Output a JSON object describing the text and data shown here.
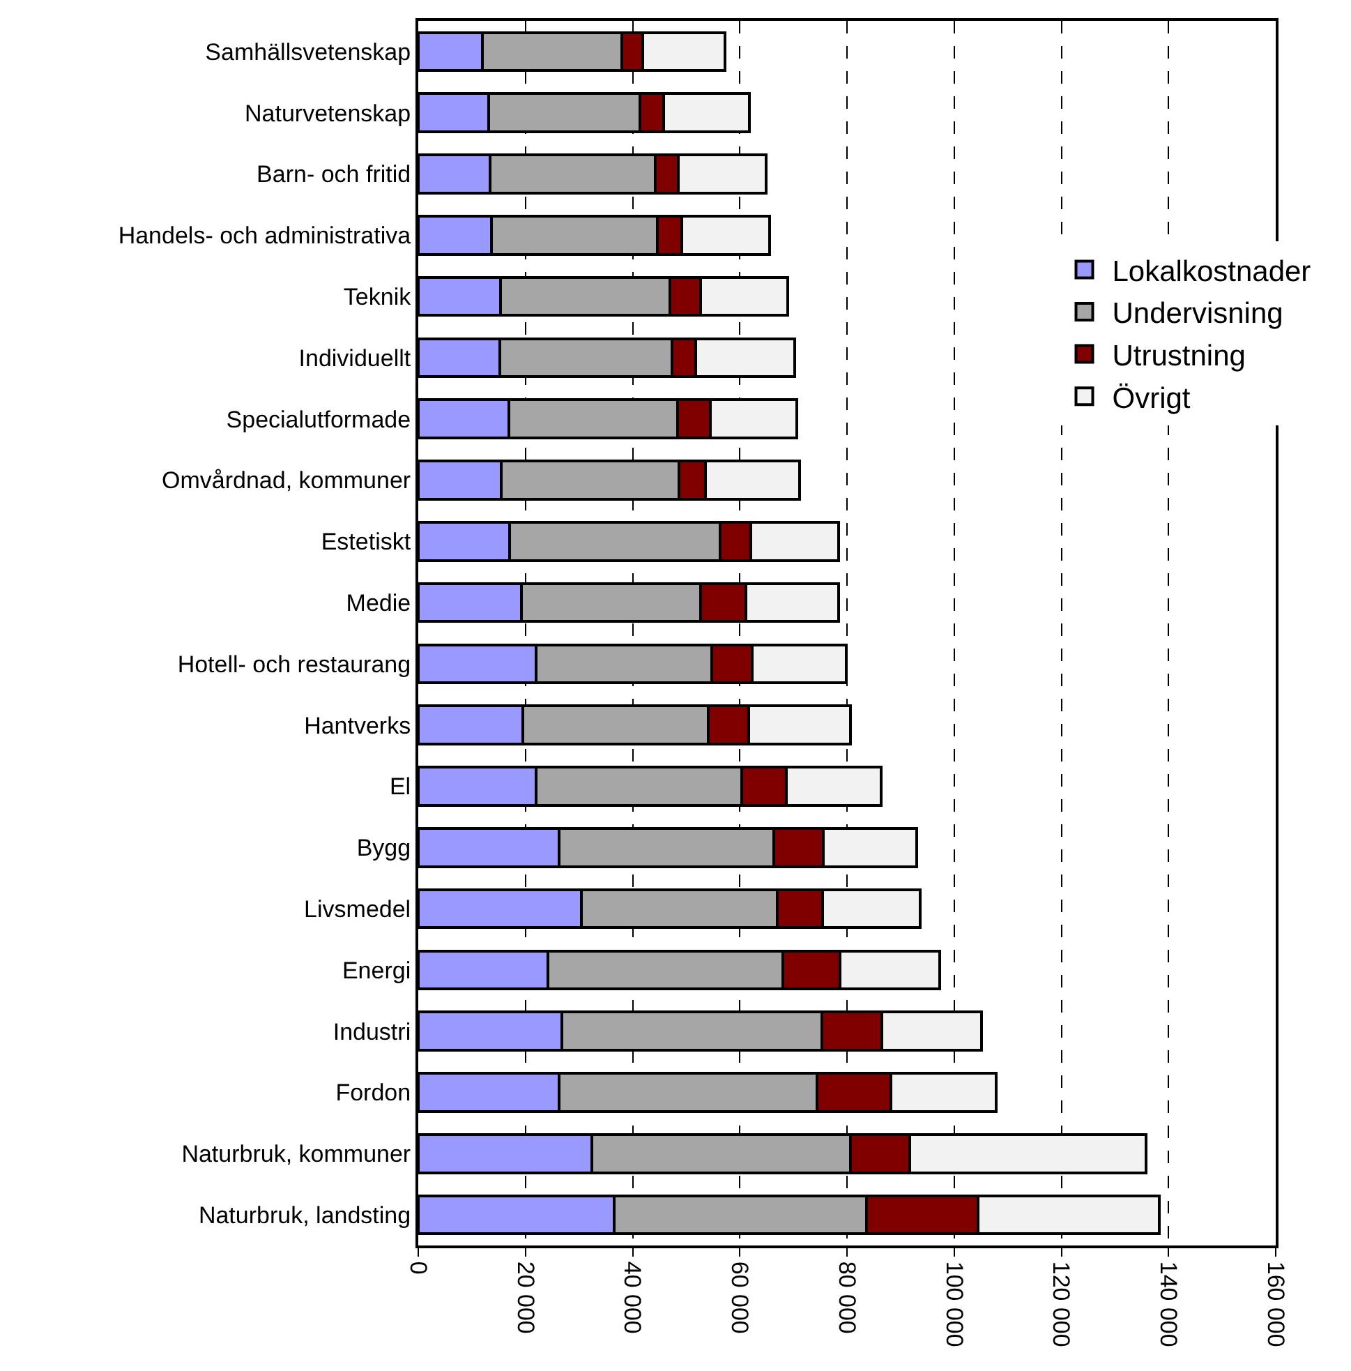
{
  "chart_data": {
    "type": "bar",
    "orientation": "horizontal",
    "stacked": true,
    "categories": [
      "Samhällsvetenskap",
      "Naturvetenskap",
      "Barn- och fritid",
      "Handels- och administrativa",
      "Teknik",
      "Individuellt",
      "Specialutformade",
      "Omvårdnad, kommuner",
      "Estetiskt",
      "Medie",
      "Hotell- och restaurang",
      "Hantverks",
      "El",
      "Bygg",
      "Livsmedel",
      "Energi",
      "Industri",
      "Fordon",
      "Naturbruk, kommuner",
      "Naturbruk, landsting"
    ],
    "series": [
      {
        "name": "Lokalkostnader",
        "color": "#9999ff",
        "values": [
          12000,
          13200,
          13400,
          13700,
          15400,
          15200,
          16900,
          15500,
          17100,
          19200,
          22000,
          19500,
          22000,
          26300,
          30400,
          24200,
          26800,
          26300,
          32400,
          36500
        ]
      },
      {
        "name": "Undervisning",
        "color": "#a6a6a6",
        "values": [
          26000,
          28100,
          30800,
          30900,
          31600,
          32100,
          31500,
          33100,
          39200,
          33500,
          32800,
          34600,
          38300,
          40000,
          36600,
          43800,
          48500,
          48100,
          48200,
          47200
        ]
      },
      {
        "name": "Utrustning",
        "color": "#800000",
        "values": [
          3900,
          4500,
          4300,
          4600,
          5700,
          4500,
          6100,
          5000,
          5800,
          8400,
          7500,
          7500,
          8400,
          9300,
          8400,
          10700,
          11200,
          13800,
          11100,
          20800
        ]
      },
      {
        "name": "Övrigt",
        "color": "#f2f2f2",
        "values": [
          15300,
          16000,
          16400,
          16400,
          16200,
          18500,
          16100,
          17500,
          16300,
          17400,
          17600,
          19000,
          17700,
          17400,
          18200,
          18600,
          18600,
          19600,
          44100,
          33800
        ]
      }
    ],
    "xlim": [
      0,
      160000
    ],
    "xticks": [
      0,
      {
        "value": 20000,
        "label": "20 000"
      },
      {
        "value": 40000,
        "label": "40 000"
      },
      {
        "value": 60000,
        "label": "60 000"
      },
      {
        "value": 80000,
        "label": "80 000"
      },
      {
        "value": 100000,
        "label": "100 000"
      },
      {
        "value": 120000,
        "label": "120 000"
      },
      {
        "value": 140000,
        "label": "140 000"
      },
      {
        "value": 160000,
        "label": "160 000"
      }
    ],
    "grid": "x",
    "legend": "right"
  }
}
